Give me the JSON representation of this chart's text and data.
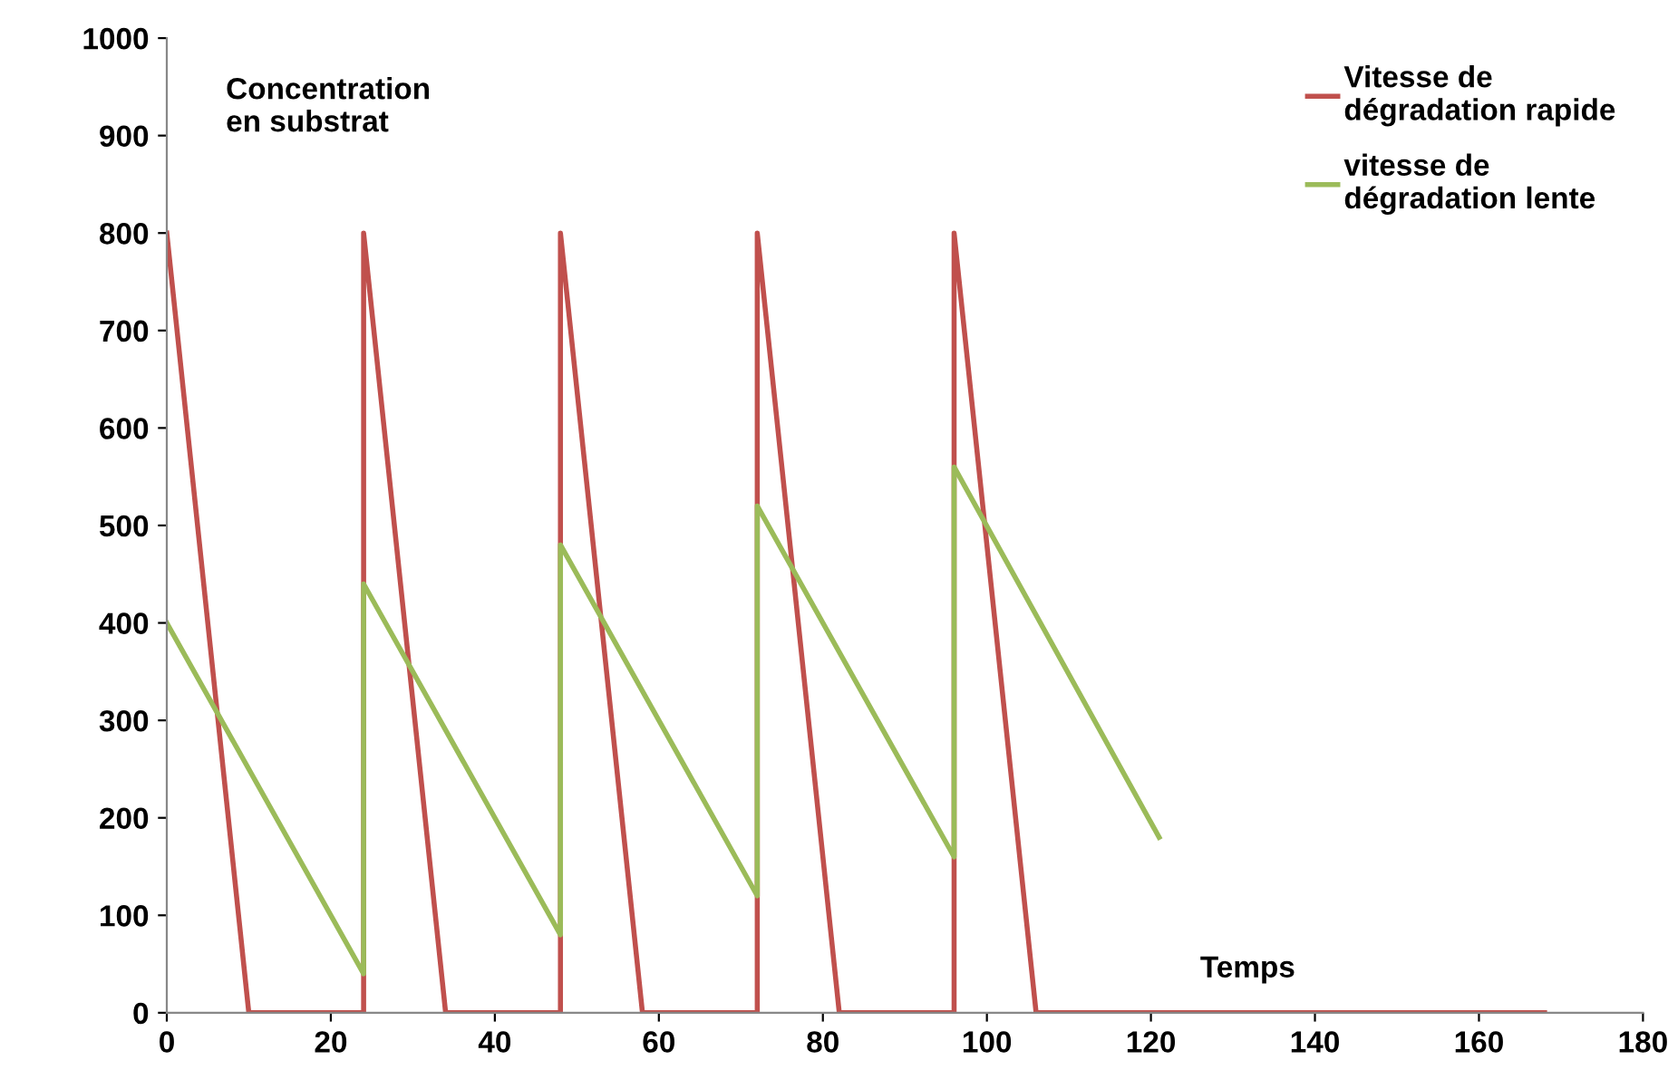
{
  "chart_data": {
    "type": "line",
    "xlabel": "Temps",
    "ylabel": "Concentration\nen substrat",
    "xlim": [
      0,
      180
    ],
    "xticks": [
      0,
      20,
      40,
      60,
      80,
      100,
      120,
      140,
      160,
      180
    ],
    "ylim": [
      0,
      1000
    ],
    "yticks": [
      0,
      100,
      200,
      300,
      400,
      500,
      600,
      700,
      800,
      900,
      1000
    ],
    "grid": false,
    "legend": "top right",
    "marker": "none",
    "line_style": "solid",
    "series": [
      {
        "name": "Vitesse de\ndégradation rapide",
        "color": "#c0504d",
        "x": [
          0,
          10,
          24,
          24,
          34,
          48,
          48,
          58,
          72,
          72,
          82,
          96,
          96,
          106,
          168
        ],
        "values": [
          800,
          0,
          0,
          800,
          0,
          0,
          800,
          0,
          0,
          800,
          0,
          0,
          800,
          0,
          0
        ]
      },
      {
        "name": "vitesse de\ndégradation lente",
        "color": "#9bbb59",
        "x": [
          0,
          24,
          24,
          48,
          48,
          72,
          72,
          96,
          96,
          121
        ],
        "values": [
          400,
          40,
          440,
          80,
          480,
          120,
          520,
          160,
          560,
          180
        ]
      }
    ]
  }
}
